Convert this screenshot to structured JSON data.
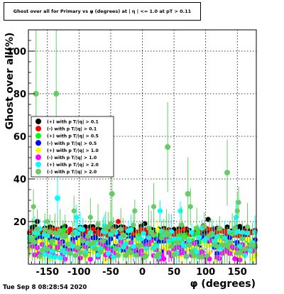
{
  "header": {
    "title": "Ghost over all for Primary vs φ (degrees) at | η | <= 1.0 at pT > 0.11"
  },
  "footer": {
    "timestamp": "Tue Sep  8 08:28:54 2020"
  },
  "chart_data": {
    "type": "scatter",
    "title": "Ghost over all for Primary vs φ (degrees) at | η | <= 1.0 at pT > 0.11",
    "xlabel": "φ (degrees)",
    "ylabel": "Ghost over all(%)",
    "xlim": [
      -180,
      180
    ],
    "ylim": [
      0,
      110
    ],
    "xticks": [
      -150,
      -100,
      -50,
      0,
      50,
      100,
      150
    ],
    "yticks": [
      20,
      40,
      60,
      80,
      100
    ],
    "grid": true,
    "legend_position": "left-middle",
    "n_bins": 90,
    "series": [
      {
        "name": "(+) with p T/|q| > 0.1",
        "color": "#000000",
        "base": 16,
        "spread": 1.8,
        "err": 0.8,
        "outliers": [
          [
            -166,
            20
          ],
          [
            4,
            19
          ],
          [
            104,
            21
          ]
        ]
      },
      {
        "name": "(-) with p T/|q| > 0.1",
        "color": "#ff0000",
        "base": 15,
        "spread": 1.8,
        "err": 0.8,
        "outliers": [
          [
            -38,
            20
          ],
          [
            96,
            18
          ]
        ]
      },
      {
        "name": "(+) with p T/|q| > 0.5",
        "color": "#00ff00",
        "base": 10,
        "spread": 4,
        "err": 3,
        "outliers": [
          [
            -124,
            16
          ],
          [
            88,
            15
          ]
        ]
      },
      {
        "name": "(-) with p T/|q| > 0.5",
        "color": "#0000ff",
        "base": 9,
        "spread": 4,
        "err": 3,
        "outliers": [
          [
            -92,
            13
          ],
          [
            112,
            14
          ]
        ]
      },
      {
        "name": "(+) with p T/|q| > 1.0",
        "color": "#ffff00",
        "base": 7,
        "spread": 5,
        "err": 4,
        "outliers": [
          [
            24,
            16
          ]
        ]
      },
      {
        "name": "(-) with p T/|q| > 1.0",
        "color": "#ff00ff",
        "base": 7,
        "spread": 5,
        "err": 4,
        "outliers": [
          [
            130,
            12
          ]
        ]
      },
      {
        "name": "(+) with p T/|q| > 2.0",
        "color": "#00ffff",
        "base": 10,
        "spread": 7,
        "err": 6,
        "outliers": [
          [
            -134,
            31
          ],
          [
            -155,
            14
          ],
          [
            -104,
            22
          ],
          [
            28,
            25
          ],
          [
            60,
            25
          ],
          [
            148,
            22
          ],
          [
            -60,
            18
          ]
        ]
      },
      {
        "name": "(-) with p T/|q| > 2.0",
        "color": "#66cc66",
        "base": 11,
        "spread": 8,
        "err": 8,
        "outliers": [
          [
            -168,
            80
          ],
          [
            -136,
            80
          ],
          [
            40,
            55
          ],
          [
            134,
            43
          ],
          [
            -172,
            27
          ],
          [
            -108,
            25
          ],
          [
            -48,
            33
          ],
          [
            -12,
            25
          ],
          [
            18,
            27
          ],
          [
            72,
            33
          ],
          [
            76,
            27
          ],
          [
            150,
            25
          ],
          [
            152,
            29
          ],
          [
            -82,
            22
          ],
          [
            -150,
            20
          ]
        ]
      }
    ]
  }
}
